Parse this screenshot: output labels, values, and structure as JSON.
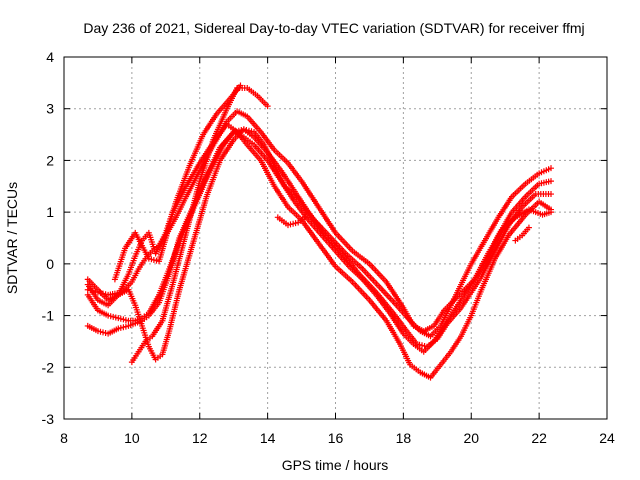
{
  "chart_data": {
    "type": "scatter",
    "title": "Day 236 of 2021, Sidereal Day-to-day VTEC variation (SDTVAR) for receiver ffmj",
    "xlabel": "GPS time / hours",
    "ylabel": "SDTVAR / TECUs",
    "xlim": [
      8,
      24
    ],
    "ylim": [
      -3,
      4
    ],
    "xticks": [
      8,
      10,
      12,
      14,
      16,
      18,
      20,
      22,
      24
    ],
    "yticks": [
      -3,
      -2,
      -1,
      0,
      1,
      2,
      3,
      4
    ],
    "grid": true,
    "marker": "plus",
    "colors": {
      "series": "#ff0000",
      "frame": "#000000",
      "grid": "#a0a0a0"
    },
    "series": [
      {
        "name": "trace-1",
        "x": [
          8.7,
          9.0,
          9.3,
          9.7,
          10.0,
          10.2,
          10.4,
          10.6,
          10.8,
          11.0,
          11.3,
          11.6,
          12.0,
          12.4,
          12.8,
          13.1,
          13.4,
          13.8,
          14.2,
          14.6,
          15.0,
          15.5,
          16.0,
          16.5,
          17.0,
          17.5,
          18.0,
          18.3,
          18.6,
          18.9,
          19.2,
          19.5,
          19.8,
          20.1,
          20.4,
          20.8,
          21.2,
          21.6,
          22.0,
          22.35
        ],
        "y": [
          -0.5,
          -0.55,
          -0.6,
          -0.55,
          -0.35,
          -0.1,
          0.1,
          0.25,
          0.35,
          0.55,
          0.9,
          1.3,
          1.8,
          2.3,
          2.75,
          2.95,
          2.85,
          2.55,
          2.2,
          1.95,
          1.6,
          1.1,
          0.6,
          0.25,
          0.0,
          -0.35,
          -0.85,
          -1.2,
          -1.3,
          -1.2,
          -0.9,
          -0.7,
          -0.5,
          -0.3,
          0.0,
          0.55,
          1.0,
          1.3,
          1.55,
          1.6
        ]
      },
      {
        "name": "trace-2",
        "x": [
          8.7,
          9.0,
          9.3,
          9.6,
          9.9,
          10.1,
          10.3,
          10.5,
          10.8,
          11.1,
          11.4,
          11.8,
          12.2,
          12.6,
          13.0,
          13.3,
          13.6,
          14.0,
          14.4,
          14.8,
          15.2,
          15.7,
          16.2,
          16.7,
          17.2,
          17.7,
          18.1,
          18.4,
          18.7,
          19.0,
          19.3,
          19.7,
          20.0,
          20.3,
          20.7,
          21.1,
          21.5,
          21.9,
          22.35
        ],
        "y": [
          -1.2,
          -1.3,
          -1.35,
          -1.25,
          -1.2,
          -1.15,
          -1.1,
          -1.0,
          -0.75,
          -0.2,
          0.5,
          1.1,
          1.7,
          2.25,
          2.55,
          2.6,
          2.45,
          2.15,
          1.8,
          1.4,
          1.0,
          0.55,
          0.2,
          -0.2,
          -0.55,
          -0.95,
          -1.3,
          -1.55,
          -1.6,
          -1.45,
          -1.15,
          -0.85,
          -0.55,
          -0.25,
          0.25,
          0.75,
          1.1,
          1.35,
          1.35
        ]
      },
      {
        "name": "trace-3",
        "x": [
          8.7,
          9.0,
          9.3,
          9.6,
          9.9,
          10.1,
          10.3,
          10.5,
          10.7,
          11.0,
          11.2,
          11.6,
          12.0,
          12.4,
          12.8,
          13.1,
          13.4,
          13.8,
          14.2,
          14.6,
          15.0,
          15.5,
          16.0,
          16.5,
          17.0,
          17.5,
          17.9,
          18.2,
          18.5,
          18.8,
          19.1,
          19.4,
          19.7,
          20.0,
          20.3,
          20.7,
          21.1,
          21.6,
          22.0,
          22.35
        ],
        "y": [
          -0.4,
          -0.7,
          -0.8,
          -0.6,
          -0.2,
          0.15,
          0.45,
          0.6,
          0.2,
          0.6,
          1.0,
          1.5,
          1.95,
          2.35,
          2.7,
          2.55,
          2.3,
          2.0,
          1.5,
          1.1,
          0.85,
          0.4,
          -0.05,
          -0.35,
          -0.7,
          -1.1,
          -1.55,
          -1.95,
          -2.1,
          -2.2,
          -1.95,
          -1.7,
          -1.4,
          -1.0,
          -0.5,
          0.1,
          0.55,
          0.95,
          1.2,
          1.05
        ]
      },
      {
        "name": "trace-4",
        "x": [
          8.7,
          9.0,
          9.3,
          9.6,
          9.9,
          10.1,
          10.3,
          10.5,
          10.8,
          11.1,
          11.5,
          11.9,
          12.3,
          12.7,
          13.0,
          13.3,
          13.6,
          14.0,
          14.4,
          14.8,
          15.2,
          15.6,
          16.0,
          16.4,
          16.8,
          17.2,
          17.6,
          18.0,
          18.3,
          18.6,
          18.9,
          19.2,
          19.5,
          19.8,
          20.1,
          20.5,
          20.9,
          21.3,
          21.7,
          22.1,
          22.35
        ],
        "y": [
          -0.6,
          -0.9,
          -1.0,
          -1.05,
          -1.1,
          -1.1,
          -1.05,
          -0.95,
          -0.6,
          -0.1,
          0.6,
          1.2,
          1.8,
          2.3,
          2.55,
          2.45,
          2.3,
          2.0,
          1.6,
          1.2,
          0.85,
          0.55,
          0.25,
          -0.05,
          -0.3,
          -0.6,
          -0.95,
          -1.35,
          -1.55,
          -1.7,
          -1.5,
          -1.2,
          -0.9,
          -0.6,
          -0.3,
          0.2,
          0.65,
          0.9,
          1.05,
          0.95,
          1.0
        ]
      },
      {
        "name": "trace-5",
        "x": [
          8.7,
          9.0,
          9.3,
          9.6,
          9.9,
          10.1,
          10.3,
          10.5,
          10.7,
          10.9,
          11.1,
          11.4,
          11.8,
          12.2,
          12.6,
          13.0,
          13.3,
          13.6,
          13.9,
          14.2,
          14.5,
          14.9,
          15.3,
          15.8,
          16.3,
          16.8,
          17.3,
          17.8,
          18.2,
          18.5,
          18.8,
          19.1,
          19.4,
          19.7,
          20.0,
          20.4,
          20.8,
          21.2,
          21.6,
          22.0,
          22.35
        ],
        "y": [
          -0.3,
          -0.5,
          -0.7,
          -0.6,
          -0.5,
          -0.8,
          -1.2,
          -1.6,
          -1.85,
          -1.75,
          -1.3,
          -0.5,
          0.4,
          1.3,
          2.0,
          2.4,
          2.6,
          2.55,
          2.3,
          1.9,
          1.5,
          1.25,
          0.9,
          0.55,
          0.2,
          -0.1,
          -0.45,
          -0.8,
          -1.1,
          -1.3,
          -1.4,
          -1.2,
          -0.8,
          -0.4,
          0.0,
          0.45,
          0.9,
          1.3,
          1.55,
          1.75,
          1.85
        ]
      },
      {
        "name": "trace-6",
        "x": [
          10.0,
          10.2,
          10.4,
          10.6,
          10.9,
          11.2,
          11.6,
          12.0,
          12.4,
          12.8,
          13.1,
          13.4,
          13.7,
          14.0
        ],
        "y": [
          -1.9,
          -1.7,
          -1.5,
          -1.4,
          -1.1,
          -0.4,
          0.6,
          1.6,
          2.4,
          3.0,
          3.4,
          3.4,
          3.25,
          3.05
        ]
      },
      {
        "name": "trace-7",
        "x": [
          9.5,
          9.8,
          10.1,
          10.3,
          10.5,
          10.8,
          11.0,
          11.3,
          11.7,
          12.1,
          12.5,
          12.9,
          13.2
        ],
        "y": [
          -0.3,
          0.3,
          0.6,
          0.35,
          0.1,
          0.05,
          0.5,
          1.2,
          1.9,
          2.5,
          2.9,
          3.2,
          3.45
        ]
      },
      {
        "name": "trace-8",
        "x": [
          14.3,
          14.6,
          14.9,
          15.1
        ],
        "y": [
          0.9,
          0.75,
          0.8,
          0.9
        ]
      },
      {
        "name": "trace-9",
        "x": [
          21.3,
          21.5,
          21.7
        ],
        "y": [
          0.45,
          0.55,
          0.7
        ]
      }
    ]
  }
}
